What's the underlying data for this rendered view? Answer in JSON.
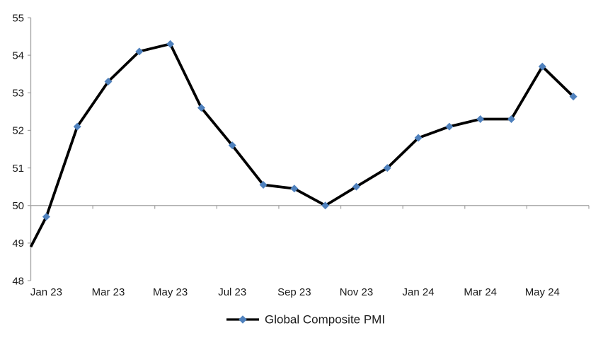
{
  "chart_data": {
    "type": "line",
    "categories": [
      "Jan 23",
      "Feb 23",
      "Mar 23",
      "Apr 23",
      "May 23",
      "Jun 23",
      "Jul 23",
      "Aug 23",
      "Sep 23",
      "Oct 23",
      "Nov 23",
      "Dec 23",
      "Jan 24",
      "Feb 24",
      "Mar 24",
      "Apr 24",
      "May 24",
      "Jun 24"
    ],
    "series": [
      {
        "name": "Global Composite PMI",
        "values": [
          49.7,
          52.1,
          53.3,
          54.1,
          54.3,
          52.6,
          51.6,
          50.55,
          50.45,
          50.0,
          50.5,
          51.0,
          51.8,
          52.1,
          52.3,
          52.3,
          53.7,
          52.9
        ]
      }
    ],
    "x_tick_labels": [
      "Jan 23",
      "Mar 23",
      "May 23",
      "Jul 23",
      "Sep 23",
      "Nov 23",
      "Jan 24",
      "Mar 24",
      "May 24"
    ],
    "x_tick_label_every": 2,
    "y_ticks": [
      55,
      54,
      53,
      52,
      51,
      50,
      49,
      48
    ],
    "ylim": [
      48,
      55
    ],
    "category_axis_cross_value": 50,
    "edge_entry_value": 48.9,
    "legend": {
      "label": "Global Composite PMI",
      "position": "bottom-center",
      "marker_shape": "diamond"
    },
    "layout": {
      "gridlines": "none",
      "marker": "diamond",
      "x_ticks_below_cross_line": true
    },
    "colors": {
      "line": "#000000",
      "marker": "#4f81bd",
      "axis": "#a3a3a3",
      "text": "#1a1a1a",
      "background": "#ffffff"
    }
  }
}
